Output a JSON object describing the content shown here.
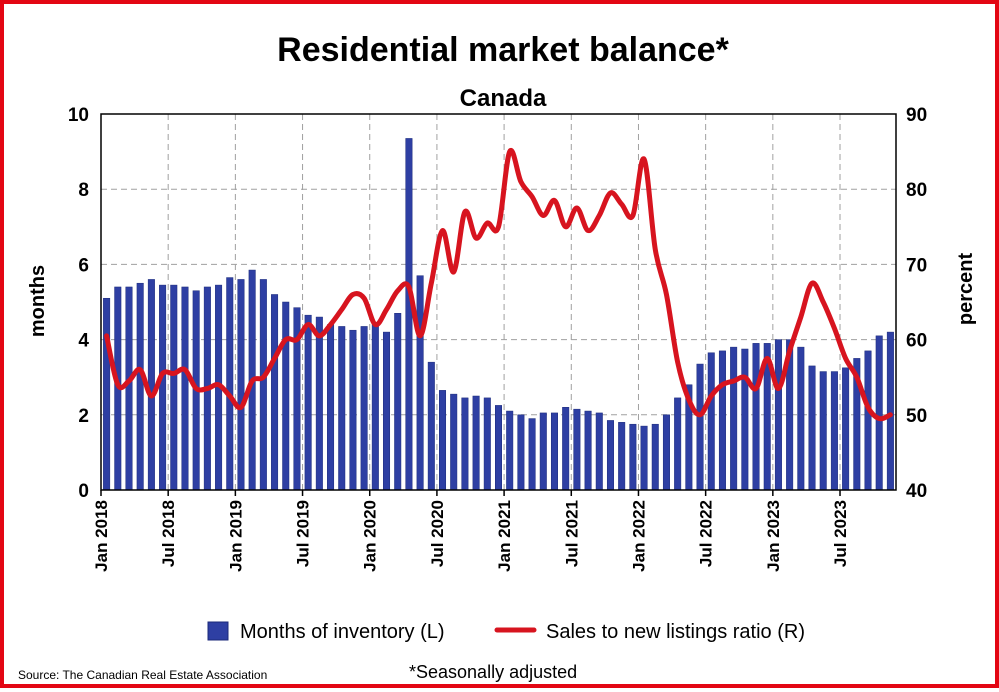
{
  "chart_data": {
    "type": "bar+line",
    "title": "Residential market balance*",
    "subtitle": "Canada",
    "ylabel_left": "months",
    "ylabel_right": "percent",
    "ylim_left": [
      0,
      10
    ],
    "ylim_right": [
      40,
      90
    ],
    "yticks_left": [
      "0",
      "2",
      "4",
      "6",
      "8",
      "10"
    ],
    "yticks_right": [
      "40",
      "50",
      "60",
      "70",
      "80",
      "90"
    ],
    "xticks": [
      {
        "label": "Jan 2018",
        "index": 0
      },
      {
        "label": "Jul 2018",
        "index": 6
      },
      {
        "label": "Jan 2019",
        "index": 12
      },
      {
        "label": "Jul 2019",
        "index": 18
      },
      {
        "label": "Jan 2020",
        "index": 24
      },
      {
        "label": "Jul 2020",
        "index": 30
      },
      {
        "label": "Jan 2021",
        "index": 36
      },
      {
        "label": "Jul 2021",
        "index": 42
      },
      {
        "label": "Jan 2022",
        "index": 48
      },
      {
        "label": "Jul 2022",
        "index": 54
      },
      {
        "label": "Jan 2023",
        "index": 60
      },
      {
        "label": "Jul 2023",
        "index": 66
      }
    ],
    "grid": true,
    "legend_position": "bottom",
    "series": [
      {
        "name": "Months of inventory (L)",
        "type": "bar",
        "axis": "left",
        "color": "#2e3fa3",
        "values": [
          5.1,
          5.4,
          5.4,
          5.5,
          5.6,
          5.45,
          5.45,
          5.4,
          5.3,
          5.4,
          5.45,
          5.65,
          5.6,
          5.85,
          5.6,
          5.2,
          5.0,
          4.85,
          4.65,
          4.6,
          4.4,
          4.35,
          4.25,
          4.35,
          4.4,
          4.2,
          4.7,
          9.35,
          5.7,
          3.4,
          2.65,
          2.55,
          2.45,
          2.5,
          2.45,
          2.25,
          2.1,
          2.0,
          1.9,
          2.05,
          2.05,
          2.2,
          2.15,
          2.1,
          2.05,
          1.85,
          1.8,
          1.75,
          1.7,
          1.75,
          2.0,
          2.45,
          2.8,
          3.35,
          3.65,
          3.7,
          3.8,
          3.75,
          3.9,
          3.9,
          4.0,
          4.0,
          3.8,
          3.3,
          3.15,
          3.15,
          3.25,
          3.5,
          3.7,
          4.1,
          4.2
        ]
      },
      {
        "name": "Sales to new listings ratio (R)",
        "type": "line",
        "axis": "right",
        "color": "#d7141f",
        "values": [
          60.5,
          54.0,
          54.5,
          56.0,
          52.5,
          55.5,
          55.5,
          56.0,
          53.5,
          53.5,
          54.0,
          52.5,
          51.0,
          54.5,
          55.0,
          57.5,
          60.0,
          60.0,
          62.0,
          60.5,
          62.0,
          64.0,
          66.0,
          65.5,
          62.0,
          64.0,
          66.5,
          67.0,
          60.5,
          67.5,
          74.5,
          69.0,
          77.0,
          73.5,
          75.5,
          75.0,
          85.0,
          81.0,
          79.0,
          76.5,
          78.5,
          75.0,
          77.5,
          74.5,
          76.5,
          79.5,
          78.0,
          76.5,
          84.0,
          72.0,
          66.0,
          57.0,
          52.0,
          50.0,
          52.5,
          54.0,
          54.5,
          55.0,
          53.5,
          57.5,
          53.5,
          58.5,
          63.0,
          67.5,
          65.0,
          61.5,
          57.5,
          55.0,
          51.0,
          49.5,
          50.0
        ]
      }
    ]
  },
  "footer": {
    "source": "Source: The Canadian Real Estate Association",
    "note": "*Seasonally adjusted"
  }
}
